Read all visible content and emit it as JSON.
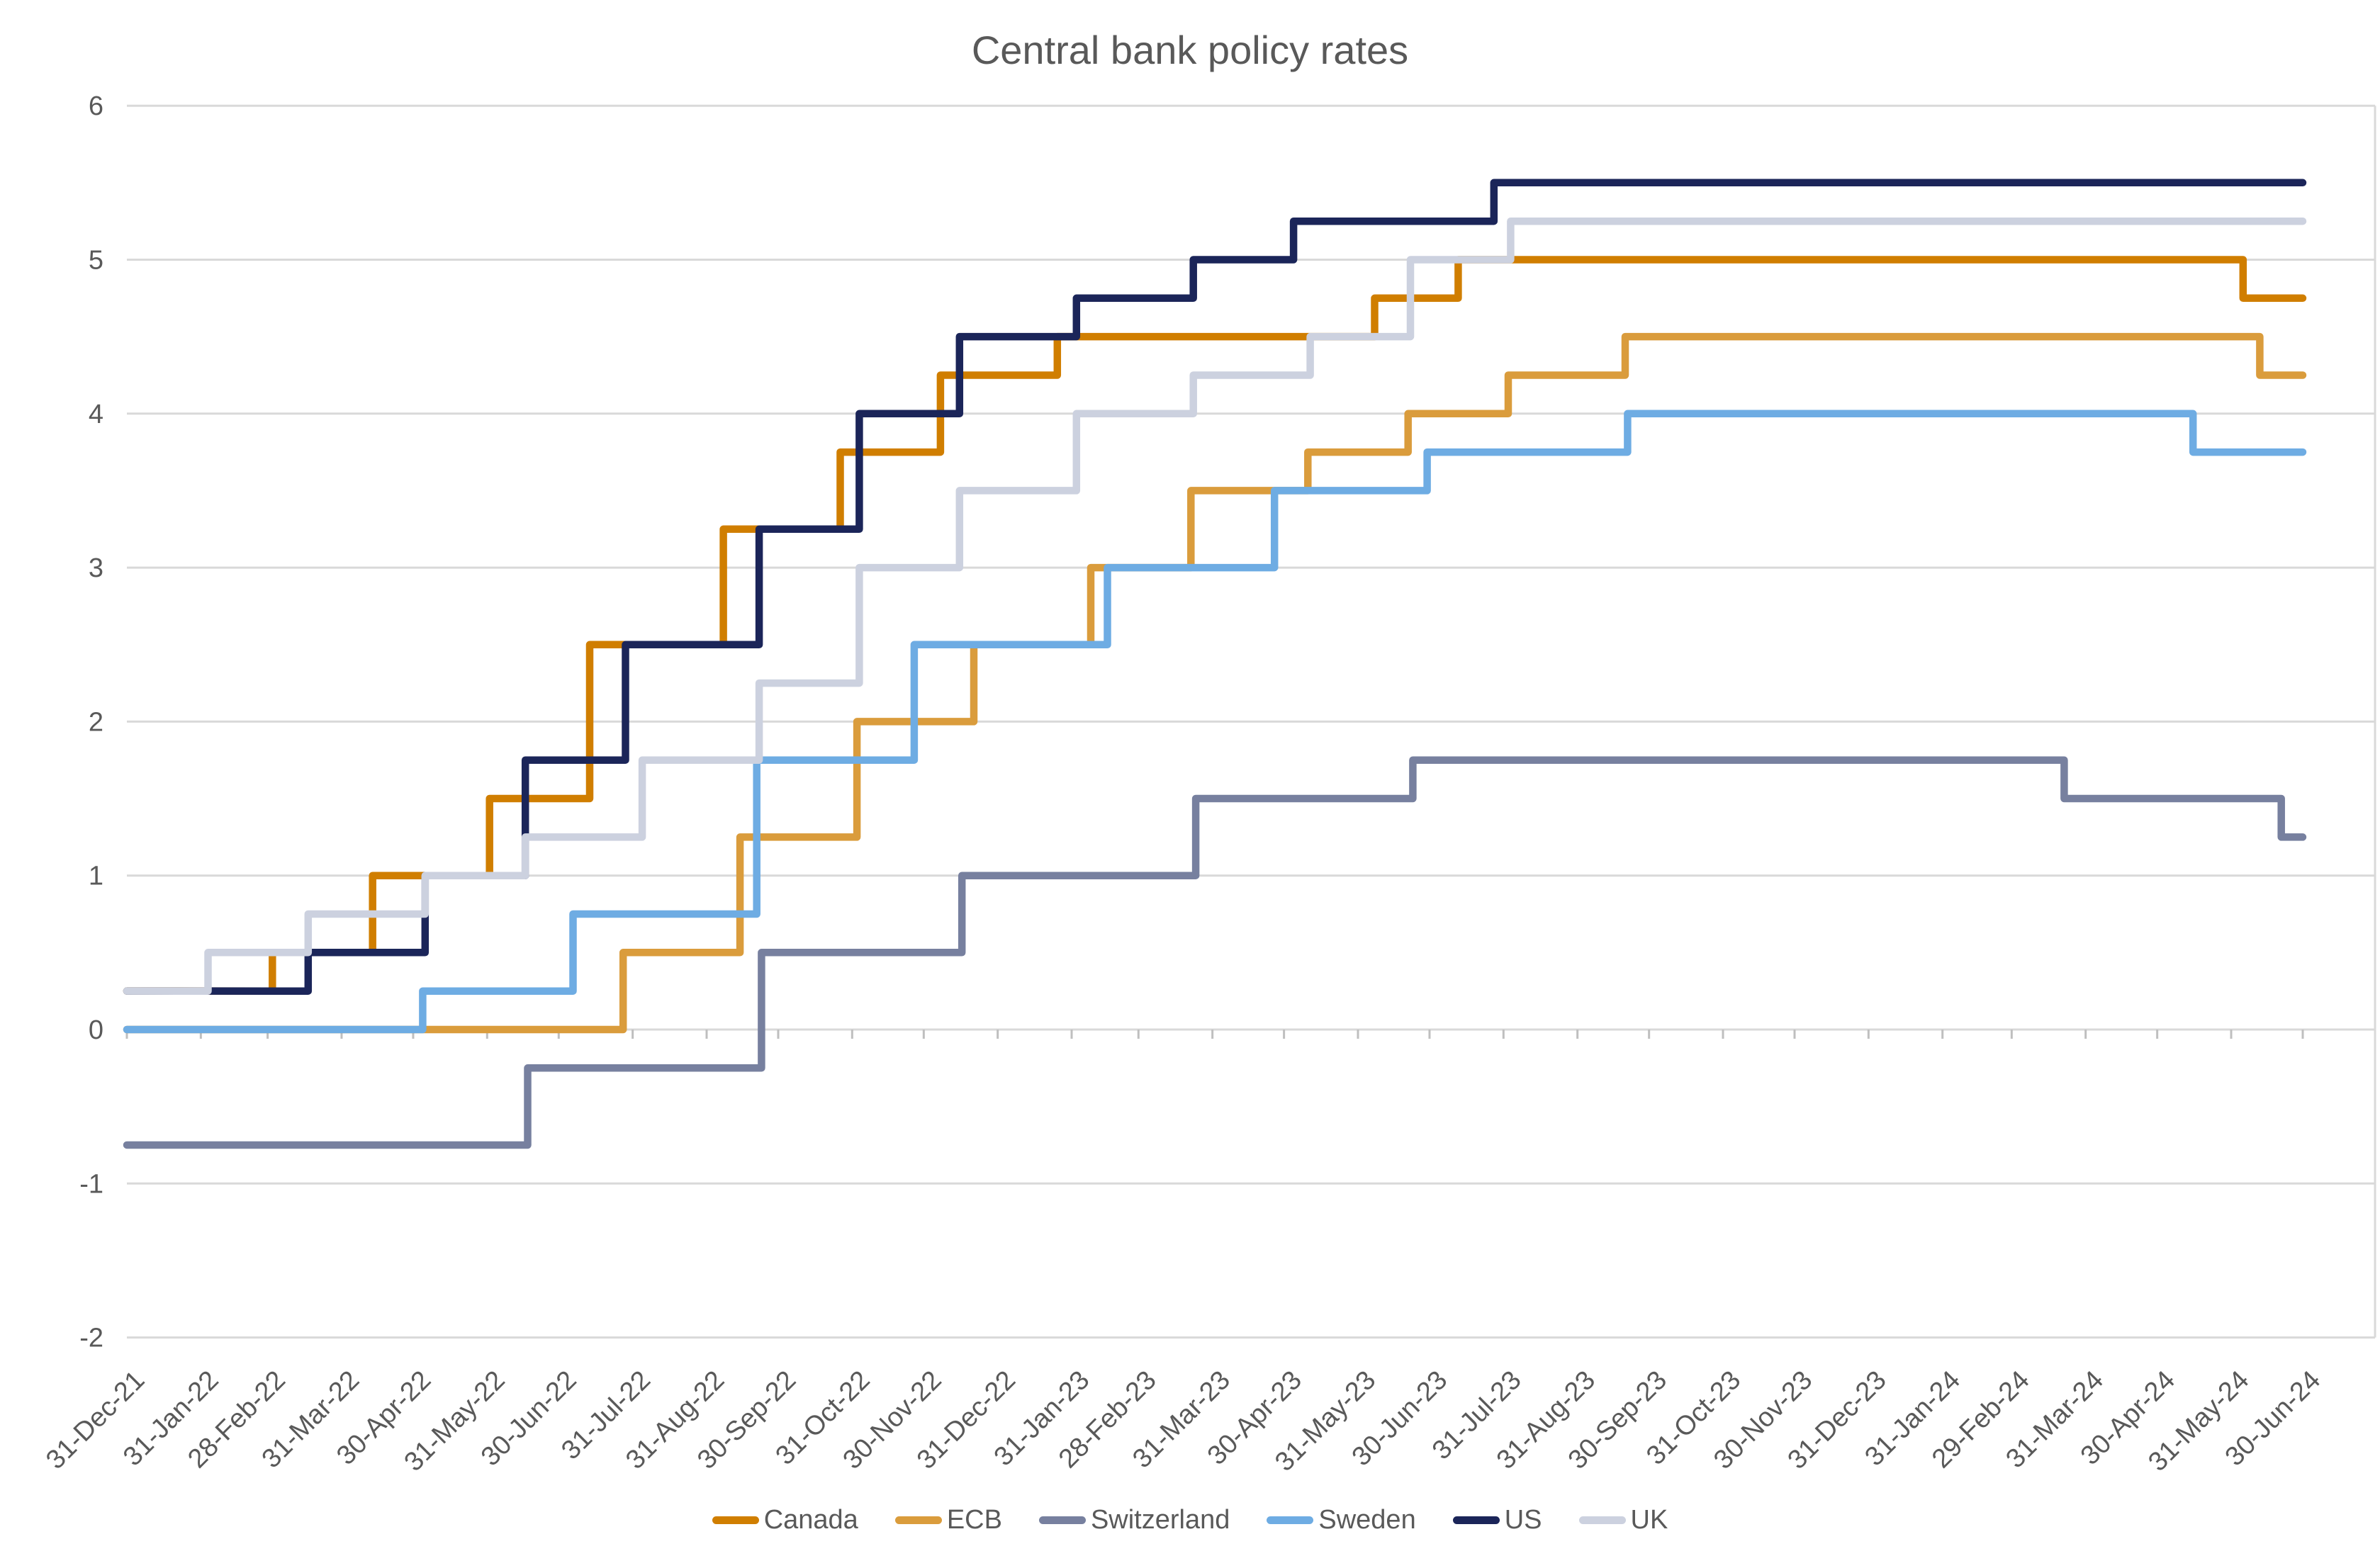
{
  "title": "Central bank policy rates",
  "chart_data": {
    "type": "line",
    "subtype": "step-after",
    "title": "Central bank policy rates",
    "x_range_dates": [
      "2021-12-31",
      "2024-06-30"
    ],
    "x_tick_labels": [
      "31-Dec-21",
      "31-Jan-22",
      "28-Feb-22",
      "31-Mar-22",
      "30-Apr-22",
      "31-May-22",
      "30-Jun-22",
      "31-Jul-22",
      "31-Aug-22",
      "30-Sep-22",
      "31-Oct-22",
      "30-Nov-22",
      "31-Dec-22",
      "31-Jan-23",
      "28-Feb-23",
      "31-Mar-23",
      "30-Apr-23",
      "31-May-23",
      "30-Jun-23",
      "31-Jul-23",
      "31-Aug-23",
      "30-Sep-23",
      "31-Oct-23",
      "30-Nov-23",
      "31-Dec-23",
      "31-Jan-24",
      "29-Feb-24",
      "31-Mar-24",
      "30-Apr-24",
      "31-May-24",
      "30-Jun-24"
    ],
    "y_tick_labels": [
      "-2",
      "-1",
      "0",
      "1",
      "2",
      "3",
      "4",
      "5",
      "6"
    ],
    "y_tick_values": [
      -2,
      -1,
      0,
      1,
      2,
      3,
      4,
      5,
      6
    ],
    "ylim": [
      -2,
      6
    ],
    "grid": true,
    "legend_position": "bottom",
    "text_color": "#595959",
    "gridline_color": "#D9D9D9",
    "tick_color": "#BFBFBF",
    "series": [
      {
        "name": "Canada",
        "color": "#D07E00",
        "start_rate": 0.25,
        "end_rate": 4.75,
        "rate_changes": [
          [
            "2022-03-02",
            0.5
          ],
          [
            "2022-04-13",
            1.0
          ],
          [
            "2022-06-01",
            1.5
          ],
          [
            "2022-07-13",
            2.5
          ],
          [
            "2022-09-07",
            3.25
          ],
          [
            "2022-10-26",
            3.75
          ],
          [
            "2022-12-07",
            4.25
          ],
          [
            "2023-01-25",
            4.5
          ],
          [
            "2023-06-07",
            4.75
          ],
          [
            "2023-07-12",
            5.0
          ],
          [
            "2024-06-05",
            4.75
          ]
        ]
      },
      {
        "name": "ECB",
        "color": "#DA9C3C",
        "start_rate": 0.0,
        "end_rate": 4.25,
        "rate_changes": [
          [
            "2022-07-27",
            0.5
          ],
          [
            "2022-09-14",
            1.25
          ],
          [
            "2022-11-02",
            2.0
          ],
          [
            "2022-12-21",
            2.5
          ],
          [
            "2023-02-08",
            3.0
          ],
          [
            "2023-03-22",
            3.5
          ],
          [
            "2023-05-10",
            3.75
          ],
          [
            "2023-06-21",
            4.0
          ],
          [
            "2023-08-02",
            4.25
          ],
          [
            "2023-09-20",
            4.5
          ],
          [
            "2024-06-12",
            4.25
          ]
        ]
      },
      {
        "name": "Switzerland",
        "color": "#77809F",
        "start_rate": -0.75,
        "end_rate": 1.25,
        "rate_changes": [
          [
            "2022-06-17",
            -0.25
          ],
          [
            "2022-09-23",
            0.5
          ],
          [
            "2022-12-16",
            1.0
          ],
          [
            "2023-03-24",
            1.5
          ],
          [
            "2023-06-23",
            1.75
          ],
          [
            "2024-03-22",
            1.5
          ],
          [
            "2024-06-21",
            1.25
          ]
        ]
      },
      {
        "name": "Sweden",
        "color": "#6EACE3",
        "start_rate": 0.0,
        "end_rate": 3.75,
        "rate_changes": [
          [
            "2022-05-04",
            0.25
          ],
          [
            "2022-07-06",
            0.75
          ],
          [
            "2022-09-21",
            1.75
          ],
          [
            "2022-11-26",
            2.5
          ],
          [
            "2023-02-15",
            3.0
          ],
          [
            "2023-04-26",
            3.5
          ],
          [
            "2023-06-29",
            3.75
          ],
          [
            "2023-09-21",
            4.0
          ],
          [
            "2024-05-15",
            3.75
          ]
        ]
      },
      {
        "name": "US",
        "color": "#1B2559",
        "start_rate": 0.25,
        "end_rate": 5.5,
        "rate_changes": [
          [
            "2022-03-17",
            0.5
          ],
          [
            "2022-05-05",
            1.0
          ],
          [
            "2022-06-16",
            1.75
          ],
          [
            "2022-07-28",
            2.5
          ],
          [
            "2022-09-22",
            3.25
          ],
          [
            "2022-11-03",
            4.0
          ],
          [
            "2022-12-15",
            4.5
          ],
          [
            "2023-02-02",
            4.75
          ],
          [
            "2023-03-23",
            5.0
          ],
          [
            "2023-05-04",
            5.25
          ],
          [
            "2023-07-27",
            5.5
          ]
        ]
      },
      {
        "name": "UK",
        "color": "#CCD1DF",
        "start_rate": 0.25,
        "end_rate": 5.25,
        "rate_changes": [
          [
            "2022-02-03",
            0.5
          ],
          [
            "2022-03-17",
            0.75
          ],
          [
            "2022-05-05",
            1.0
          ],
          [
            "2022-06-16",
            1.25
          ],
          [
            "2022-08-04",
            1.75
          ],
          [
            "2022-09-22",
            2.25
          ],
          [
            "2022-11-03",
            3.0
          ],
          [
            "2022-12-15",
            3.5
          ],
          [
            "2023-02-02",
            4.0
          ],
          [
            "2023-03-23",
            4.25
          ],
          [
            "2023-05-11",
            4.5
          ],
          [
            "2023-06-22",
            5.0
          ],
          [
            "2023-08-03",
            5.25
          ]
        ]
      }
    ]
  }
}
